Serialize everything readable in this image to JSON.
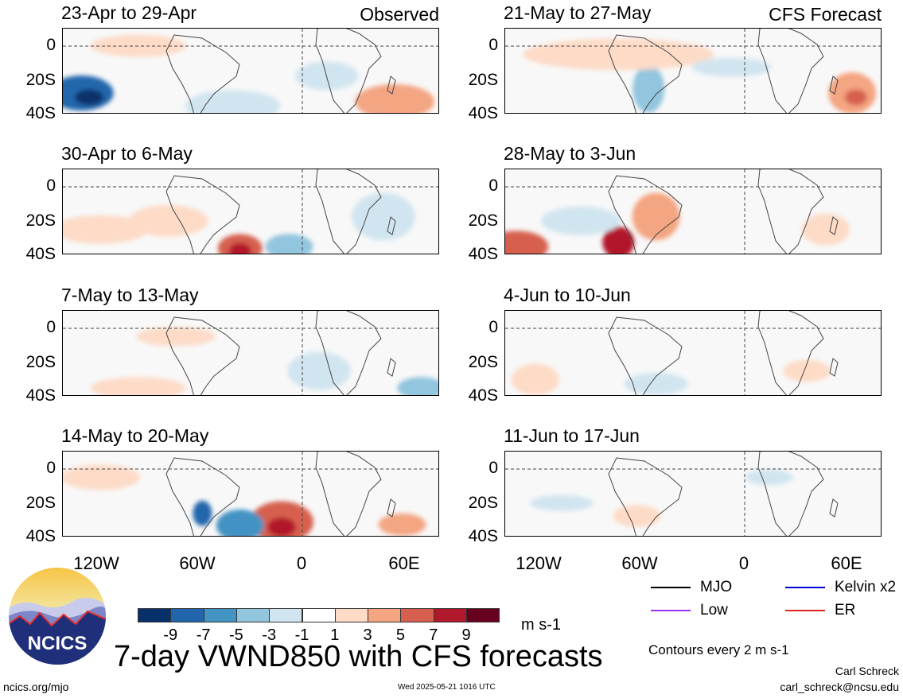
{
  "panels": [
    {
      "title": "23-Apr to 29-Apr",
      "tag": "Observed",
      "col": 0,
      "row": 0
    },
    {
      "title": "30-Apr to 6-May",
      "tag": "",
      "col": 0,
      "row": 1
    },
    {
      "title": "7-May to 13-May",
      "tag": "",
      "col": 0,
      "row": 2
    },
    {
      "title": "14-May to 20-May",
      "tag": "",
      "col": 0,
      "row": 3
    },
    {
      "title": "21-May to 27-May",
      "tag": "CFS Forecast",
      "col": 1,
      "row": 0
    },
    {
      "title": "28-May to 3-Jun",
      "tag": "",
      "col": 1,
      "row": 1
    },
    {
      "title": "4-Jun to 10-Jun",
      "tag": "",
      "col": 1,
      "row": 2
    },
    {
      "title": "11-Jun to 17-Jun",
      "tag": "",
      "col": 1,
      "row": 3
    }
  ],
  "y_labels": [
    "0",
    "20S",
    "40S"
  ],
  "x_labels": [
    "120W",
    "60W",
    "0",
    "60E"
  ],
  "colorbar": {
    "colors": [
      "#08306b",
      "#2166ac",
      "#4393c3",
      "#92c5de",
      "#d1e5f0",
      "#ffffff",
      "#fddbc7",
      "#f4a582",
      "#d6604d",
      "#b2182b",
      "#67001f"
    ],
    "labels": [
      "-9",
      "-7",
      "-5",
      "-3",
      "-1",
      "1",
      "3",
      "5",
      "7",
      "9"
    ],
    "units": "m s-1"
  },
  "legend": [
    {
      "label": "MJO",
      "color": "#000000"
    },
    {
      "label": "Kelvin x2",
      "color": "#0000dd"
    },
    {
      "label": "Low",
      "color": "#9933ff"
    },
    {
      "label": "ER",
      "color": "#dd2222"
    }
  ],
  "contours_note": "Contours every 2 m s-1",
  "main_title": "7-day VWND850 with CFS forecasts",
  "logo_text": "NCICS",
  "footer": {
    "url": "ncics.org/mjo",
    "timestamp": "Wed 2025-05-21 1016 UTC",
    "author": "Carl Schreck",
    "email": "carl_schreck@ncsu.edu"
  }
}
